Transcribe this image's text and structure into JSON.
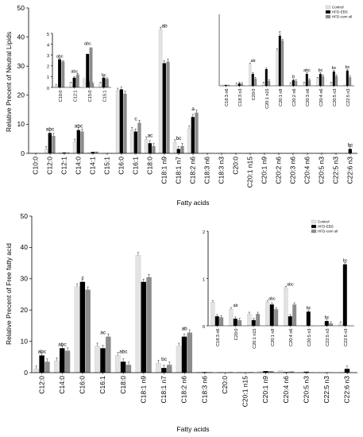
{
  "colors": {
    "control": "#e3e3e3",
    "hfd_ebs": "#000000",
    "hfd_corn_oil": "#8c8c8c"
  },
  "chart_data": [
    {
      "type": "bar",
      "xlabel": "Fatty acids",
      "ylabel": "Relative Precent of Neutral Lipids",
      "ylim": [
        0,
        50
      ],
      "yticks": [
        0,
        10,
        20,
        30,
        40,
        50
      ],
      "categories": [
        "C10:0",
        "C12:0",
        "C12:1",
        "C14:0",
        "C14:1",
        "C15:1",
        "C16:0",
        "C16:1",
        "C18:0",
        "C18:1 n9",
        "C18:1 n7",
        "C18:2 n6",
        "C18:3 n6",
        "C18:3 n3",
        "C20:0",
        "C20:1 n15",
        "C20:1 n9",
        "C20:2 n6",
        "C20:3 n6",
        "C20:4 n6",
        "C20:5 n3",
        "C22:5 n3",
        "C22:6 n3"
      ],
      "series": [
        {
          "name": "Control",
          "values": [
            0.1,
            1.5,
            0.2,
            4.0,
            0.3,
            0.1,
            21.5,
            8.0,
            4.8,
            42.5,
            3.8,
            8.5,
            0.1,
            0.1,
            0.1,
            0.1,
            0.1,
            0.1,
            0.1,
            0.1,
            0.1,
            0.1,
            0.1
          ]
        },
        {
          "name": "HFD-EBS",
          "values": [
            0.1,
            7.0,
            0.3,
            8.0,
            0.5,
            0.1,
            22.0,
            7.5,
            3.5,
            31.0,
            1.5,
            12.5,
            0.1,
            0.1,
            0.1,
            0.1,
            0.1,
            0.1,
            0.1,
            0.1,
            0.1,
            0.1,
            1.5
          ]
        },
        {
          "name": "HFD-corn oil",
          "values": [
            0.1,
            6.0,
            0.3,
            7.5,
            0.6,
            0.1,
            20.5,
            10.5,
            2.5,
            31.5,
            2.5,
            14.0,
            0.1,
            0.1,
            0.1,
            0.1,
            0.1,
            0.1,
            0.1,
            0.1,
            0.1,
            0.1,
            0.1
          ]
        }
      ],
      "annotations": [
        {
          "category": "C12:0",
          "text": "abc"
        },
        {
          "category": "C14:0",
          "text": "abc"
        },
        {
          "category": "C16:1",
          "text": "c"
        },
        {
          "category": "C18:0",
          "text": "ac"
        },
        {
          "category": "C18:1 n9",
          "text": "ab"
        },
        {
          "category": "C18:1 n7",
          "text": "bc"
        },
        {
          "category": "C18:2 n6",
          "text": "a"
        },
        {
          "category": "C22:6 n3",
          "text": "bc"
        }
      ],
      "insets": [
        {
          "ylim": [
            0,
            5
          ],
          "yticks": [
            0,
            1,
            2,
            3,
            4,
            5
          ],
          "categories": [
            "C10:0",
            "C12:1",
            "C15:0",
            "C15:1"
          ],
          "series": [
            {
              "name": "Control",
              "values": [
                0.2,
                0.4,
                0.3,
                0.4
              ]
            },
            {
              "name": "HFD-EBS",
              "values": [
                2.6,
                0.9,
                0.5,
                0.9
              ]
            },
            {
              "name": "HFD-corn oil",
              "values": [
                2.4,
                1.2,
                0.4,
                0.8
              ]
            }
          ],
          "annotations": [
            {
              "category": "C10:0",
              "text": "abc"
            },
            {
              "category": "C12:1",
              "text": "abc"
            },
            {
              "category": "C15:0",
              "text": "ab"
            },
            {
              "category": "C15:1",
              "text": "bc"
            }
          ],
          "extra": {
            "category": "C12:1",
            "text": "abc",
            "values": [
              0.9,
              3.1,
              3.7
            ]
          }
        },
        {
          "ylim": [
            0,
            1.5
          ],
          "yticks": [],
          "categories": [
            "C18:3 n6",
            "C18:3 n3",
            "C20:0",
            "C20:1 n15",
            "C20:1 n9",
            "C20:2 n6",
            "C20:3 n6",
            "C20:4 n6",
            "C20:5 n3",
            "C22:5 n3"
          ],
          "series": [
            {
              "name": "Control",
              "values": [
                0.02,
                0.03,
                0.45,
                0.05,
                0.75,
                0.04,
                0.05,
                0.15,
                0.05,
                0.02
              ]
            },
            {
              "name": "HFD-EBS",
              "values": [
                0.02,
                0.05,
                0.25,
                0.35,
                1.05,
                0.12,
                0.25,
                0.25,
                0.3,
                0.32
              ]
            },
            {
              "name": "HFD-corn oil",
              "values": [
                0.02,
                0.04,
                0.15,
                0.1,
                0.95,
                0.1,
                0.12,
                0.2,
                0.2,
                0.18
              ]
            }
          ],
          "annotations": [
            {
              "category": "C20:0",
              "text": "ab"
            },
            {
              "category": "C20:1 n9",
              "text": "c"
            },
            {
              "category": "C20:2 n6",
              "text": "b"
            },
            {
              "category": "C20:3 n6",
              "text": "abc"
            },
            {
              "category": "C20:4 n6",
              "text": "bc"
            },
            {
              "category": "C20:5 n3",
              "text": "bc"
            },
            {
              "category": "C22:5 n3",
              "text": "bc"
            }
          ],
          "legend": [
            "Control",
            "HFD-EBS",
            "HFD-corn oil"
          ]
        }
      ]
    },
    {
      "type": "bar",
      "xlabel": "Fatty acids",
      "ylabel": "Relative Precent of Free fatty acid",
      "ylim": [
        0,
        50
      ],
      "yticks": [
        0,
        10,
        20,
        30,
        40,
        50
      ],
      "categories": [
        "C12:0",
        "C14:0",
        "C16:0",
        "C16:1",
        "C18:0",
        "C18:1 n9",
        "C18:1 n7",
        "C18:2 n6",
        "C18:3 n6",
        "C20:0",
        "C20:1 n15",
        "C20:1 n9",
        "C20:4 n6",
        "C20:5 n3",
        "C22:5 n3",
        "C22:6 n3"
      ],
      "series": [
        {
          "name": "Control",
          "values": [
            1.2,
            3.8,
            27.5,
            8.5,
            5.5,
            37.5,
            3.0,
            8.5,
            0.2,
            0.2,
            0.2,
            0.4,
            0.7,
            0.1,
            0.05,
            0.1
          ]
        },
        {
          "name": "HFD-EBS",
          "values": [
            5.5,
            7.8,
            29.0,
            7.8,
            3.5,
            29.0,
            1.5,
            11.5,
            0.2,
            0.1,
            0.1,
            0.5,
            0.2,
            0.3,
            0.1,
            1.2
          ]
        },
        {
          "name": "HFD-corn oil",
          "values": [
            3.5,
            7.0,
            26.5,
            11.5,
            2.5,
            30.5,
            2.5,
            12.8,
            0.2,
            0.2,
            0.2,
            0.5,
            0.4,
            0.1,
            0.05,
            0.1
          ]
        }
      ],
      "annotations": [
        {
          "category": "C12:0",
          "text": "abc"
        },
        {
          "category": "C14:0",
          "text": "abc"
        },
        {
          "category": "C16:0",
          "text": "c"
        },
        {
          "category": "C16:1",
          "text": "ac"
        },
        {
          "category": "C18:0",
          "text": "abc"
        },
        {
          "category": "C18:1 n7",
          "text": "bc"
        },
        {
          "category": "C18:2 n6",
          "text": "ab"
        }
      ],
      "insets": [
        {
          "ylim": [
            0,
            2
          ],
          "yticks": [
            0,
            1,
            2
          ],
          "categories": [
            "C18:3 n6",
            "C20:0",
            "C20:1 n15",
            "C20:1 n9",
            "C20:4 n6",
            "C20:5 n3",
            "C22:5 n3",
            "C22:6 n3"
          ],
          "series": [
            {
              "name": "Control",
              "values": [
                0.5,
                0.35,
                0.25,
                0.5,
                0.8,
                0.0,
                0.0,
                0.05
              ]
            },
            {
              "name": "HFD-EBS",
              "values": [
                0.2,
                0.15,
                0.12,
                0.45,
                0.2,
                0.3,
                0.1,
                1.3
              ]
            },
            {
              "name": "HFD-corn oil",
              "values": [
                0.18,
                0.12,
                0.25,
                0.35,
                0.45,
                0.0,
                0.05,
                0.0
              ]
            }
          ],
          "annotations": [
            {
              "category": "C20:0",
              "text": "ab"
            },
            {
              "category": "C20:1 n9",
              "text": "abc"
            },
            {
              "category": "C20:4 n6",
              "text": "abc"
            },
            {
              "category": "C20:5 n3",
              "text": "bc"
            },
            {
              "category": "C22:5 n3",
              "text": "bc"
            },
            {
              "category": "C22:6 n3",
              "text": "bc"
            }
          ],
          "legend": [
            "Control",
            "HFD-EBS",
            "HFD-corn oil"
          ]
        }
      ]
    }
  ]
}
